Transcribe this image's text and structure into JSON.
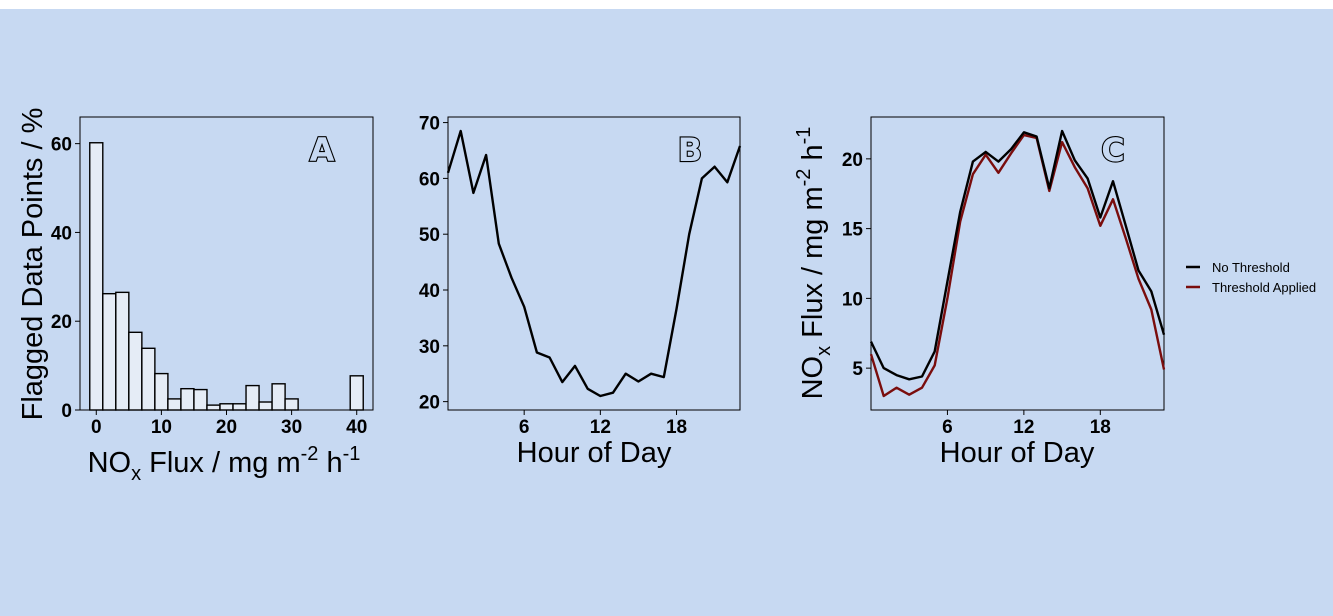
{
  "colors": {
    "background": "#c7d9f2",
    "bar_fill": "#e5ecf6",
    "line_black": "#000000",
    "line_threshold": "#7a0d0d"
  },
  "legend": {
    "items": [
      "No Threshold",
      "Threshold Applied"
    ],
    "placement": "right"
  },
  "chart_data": [
    {
      "type": "bar",
      "panel_label": "A",
      "ylabel": "Flagged Data Points / %",
      "xlabel_parts": {
        "a": "NO",
        "sub": "x",
        "b": " Flux / mg m",
        "sup1": "-2",
        "c": " h",
        "sup2": "-1"
      },
      "xticks": [
        "0",
        "10",
        "20",
        "30",
        "40"
      ],
      "yticks": [
        "0",
        "20",
        "40",
        "60"
      ],
      "xlim": [
        -2.5,
        42.5
      ],
      "ylim": [
        0,
        66
      ],
      "bin_width": 2,
      "bins": [
        0,
        2,
        4,
        6,
        8,
        10,
        12,
        14,
        16,
        18,
        20,
        22,
        24,
        26,
        28,
        30,
        40
      ],
      "values": [
        60.2,
        26.2,
        26.5,
        17.5,
        13.9,
        8.2,
        2.5,
        4.8,
        4.6,
        1.1,
        1.4,
        1.4,
        5.5,
        1.8,
        5.9,
        2.5,
        7.7
      ]
    },
    {
      "type": "line",
      "panel_label": "B",
      "xlabel": "Hour of Day",
      "xticks": [
        "6",
        "12",
        "18"
      ],
      "yticks": [
        "20",
        "30",
        "40",
        "50",
        "60",
        "70"
      ],
      "xlim": [
        0,
        23
      ],
      "ylim": [
        18.5,
        71
      ],
      "series": [
        {
          "x": [
            0,
            1,
            2,
            3,
            4,
            5,
            6,
            7,
            8,
            9,
            10,
            11,
            12,
            13,
            14,
            15,
            16,
            17,
            18,
            19,
            20,
            21,
            22,
            23
          ],
          "values": [
            61,
            68.5,
            57.4,
            64.2,
            48.3,
            42.2,
            37,
            28.8,
            27.9,
            23.5,
            26.4,
            22.3,
            21,
            21.6,
            25,
            23.6,
            25,
            24.4,
            36.6,
            50,
            60,
            62.1,
            59.3,
            65.8
          ]
        }
      ]
    },
    {
      "type": "line",
      "panel_label": "C",
      "xlabel": "Hour of Day",
      "ylabel_parts": {
        "a": "NO",
        "sub": "x",
        "b": " Flux / mg m",
        "sup1": "-2",
        "c": " h",
        "sup2": "-1"
      },
      "xticks": [
        "6",
        "12",
        "18"
      ],
      "yticks": [
        "5",
        "10",
        "15",
        "20"
      ],
      "xlim": [
        0,
        23
      ],
      "ylim": [
        2,
        23
      ],
      "series": [
        {
          "name": "No Threshold",
          "x": [
            0,
            1,
            2,
            3,
            4,
            5,
            6,
            7,
            8,
            9,
            10,
            11,
            12,
            13,
            14,
            15,
            16,
            17,
            18,
            19,
            20,
            21,
            22,
            23
          ],
          "values": [
            6.9,
            5,
            4.5,
            4.2,
            4.4,
            6.2,
            11.2,
            16.2,
            19.8,
            20.5,
            19.8,
            20.7,
            21.9,
            21.6,
            17.9,
            22,
            19.9,
            18.6,
            15.8,
            18.4,
            15.2,
            12,
            10.5,
            7.4
          ]
        },
        {
          "name": "Threshold Applied",
          "x": [
            0,
            1,
            2,
            3,
            4,
            5,
            6,
            7,
            8,
            9,
            10,
            11,
            12,
            13,
            14,
            15,
            16,
            17,
            18,
            19,
            20,
            21,
            22,
            23
          ],
          "values": [
            6,
            3,
            3.6,
            3.1,
            3.6,
            5.2,
            10,
            15.5,
            18.9,
            20.3,
            19,
            20.4,
            21.7,
            21.5,
            17.7,
            21.2,
            19.4,
            17.9,
            15.2,
            17.1,
            14.3,
            11.4,
            9.2,
            4.9
          ]
        }
      ]
    }
  ]
}
